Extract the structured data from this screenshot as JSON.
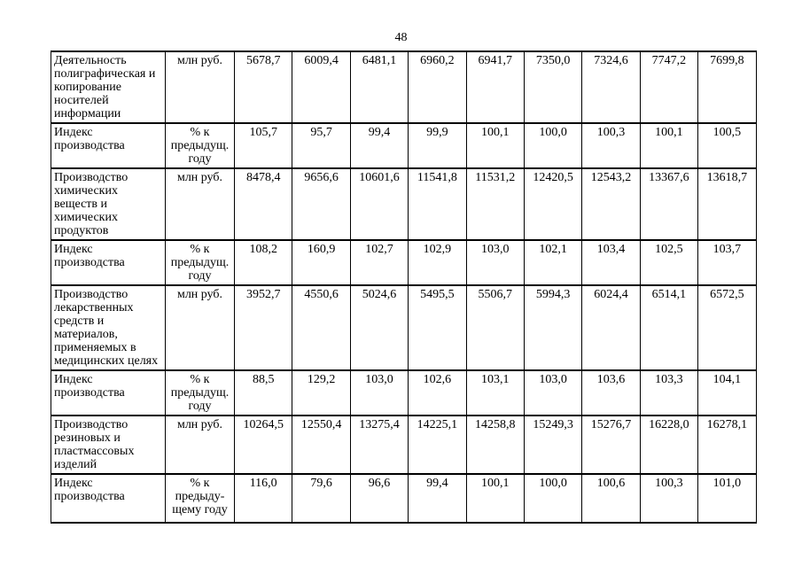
{
  "page": {
    "number": "48"
  },
  "table": {
    "rows": [
      {
        "label": "Деятельность полиграфическая и копирование носителей информации",
        "unit": "млн руб.",
        "values": [
          "5678,7",
          "6009,4",
          "6481,1",
          "6960,2",
          "6941,7",
          "7350,0",
          "7324,6",
          "7747,2",
          "7699,8"
        ]
      },
      {
        "label": "Индекс производства",
        "unit": "% к предыдущ. году",
        "values": [
          "105,7",
          "95,7",
          "99,4",
          "99,9",
          "100,1",
          "100,0",
          "100,3",
          "100,1",
          "100,5"
        ]
      },
      {
        "label": "Производство химических веществ и химических продуктов",
        "unit": "млн руб.",
        "values": [
          "8478,4",
          "9656,6",
          "10601,6",
          "11541,8",
          "11531,2",
          "12420,5",
          "12543,2",
          "13367,6",
          "13618,7"
        ]
      },
      {
        "label": "Индекс производства",
        "unit": "% к предыдущ. году",
        "values": [
          "108,2",
          "160,9",
          "102,7",
          "102,9",
          "103,0",
          "102,1",
          "103,4",
          "102,5",
          "103,7"
        ]
      },
      {
        "label": "Производство лекарственных средств и материалов, применяемых в медицинских целях",
        "unit": "млн руб.",
        "values": [
          "3952,7",
          "4550,6",
          "5024,6",
          "5495,5",
          "5506,7",
          "5994,3",
          "6024,4",
          "6514,1",
          "6572,5"
        ]
      },
      {
        "label": "Индекс производства",
        "unit": "% к предыдущ. году",
        "values": [
          "88,5",
          "129,2",
          "103,0",
          "102,6",
          "103,1",
          "103,0",
          "103,6",
          "103,3",
          "104,1"
        ]
      },
      {
        "label": "Производство резиновых и пластмассовых изделий",
        "unit": "млн руб.",
        "values": [
          "10264,5",
          "12550,4",
          "13275,4",
          "14225,1",
          "14258,8",
          "15249,3",
          "15276,7",
          "16228,0",
          "16278,1"
        ]
      },
      {
        "label": "Индекс производства",
        "unit": "% к предыду-щему году",
        "values": [
          "116,0",
          "79,6",
          "96,6",
          "99,4",
          "100,1",
          "100,0",
          "100,6",
          "100,3",
          "101,0"
        ]
      }
    ]
  }
}
